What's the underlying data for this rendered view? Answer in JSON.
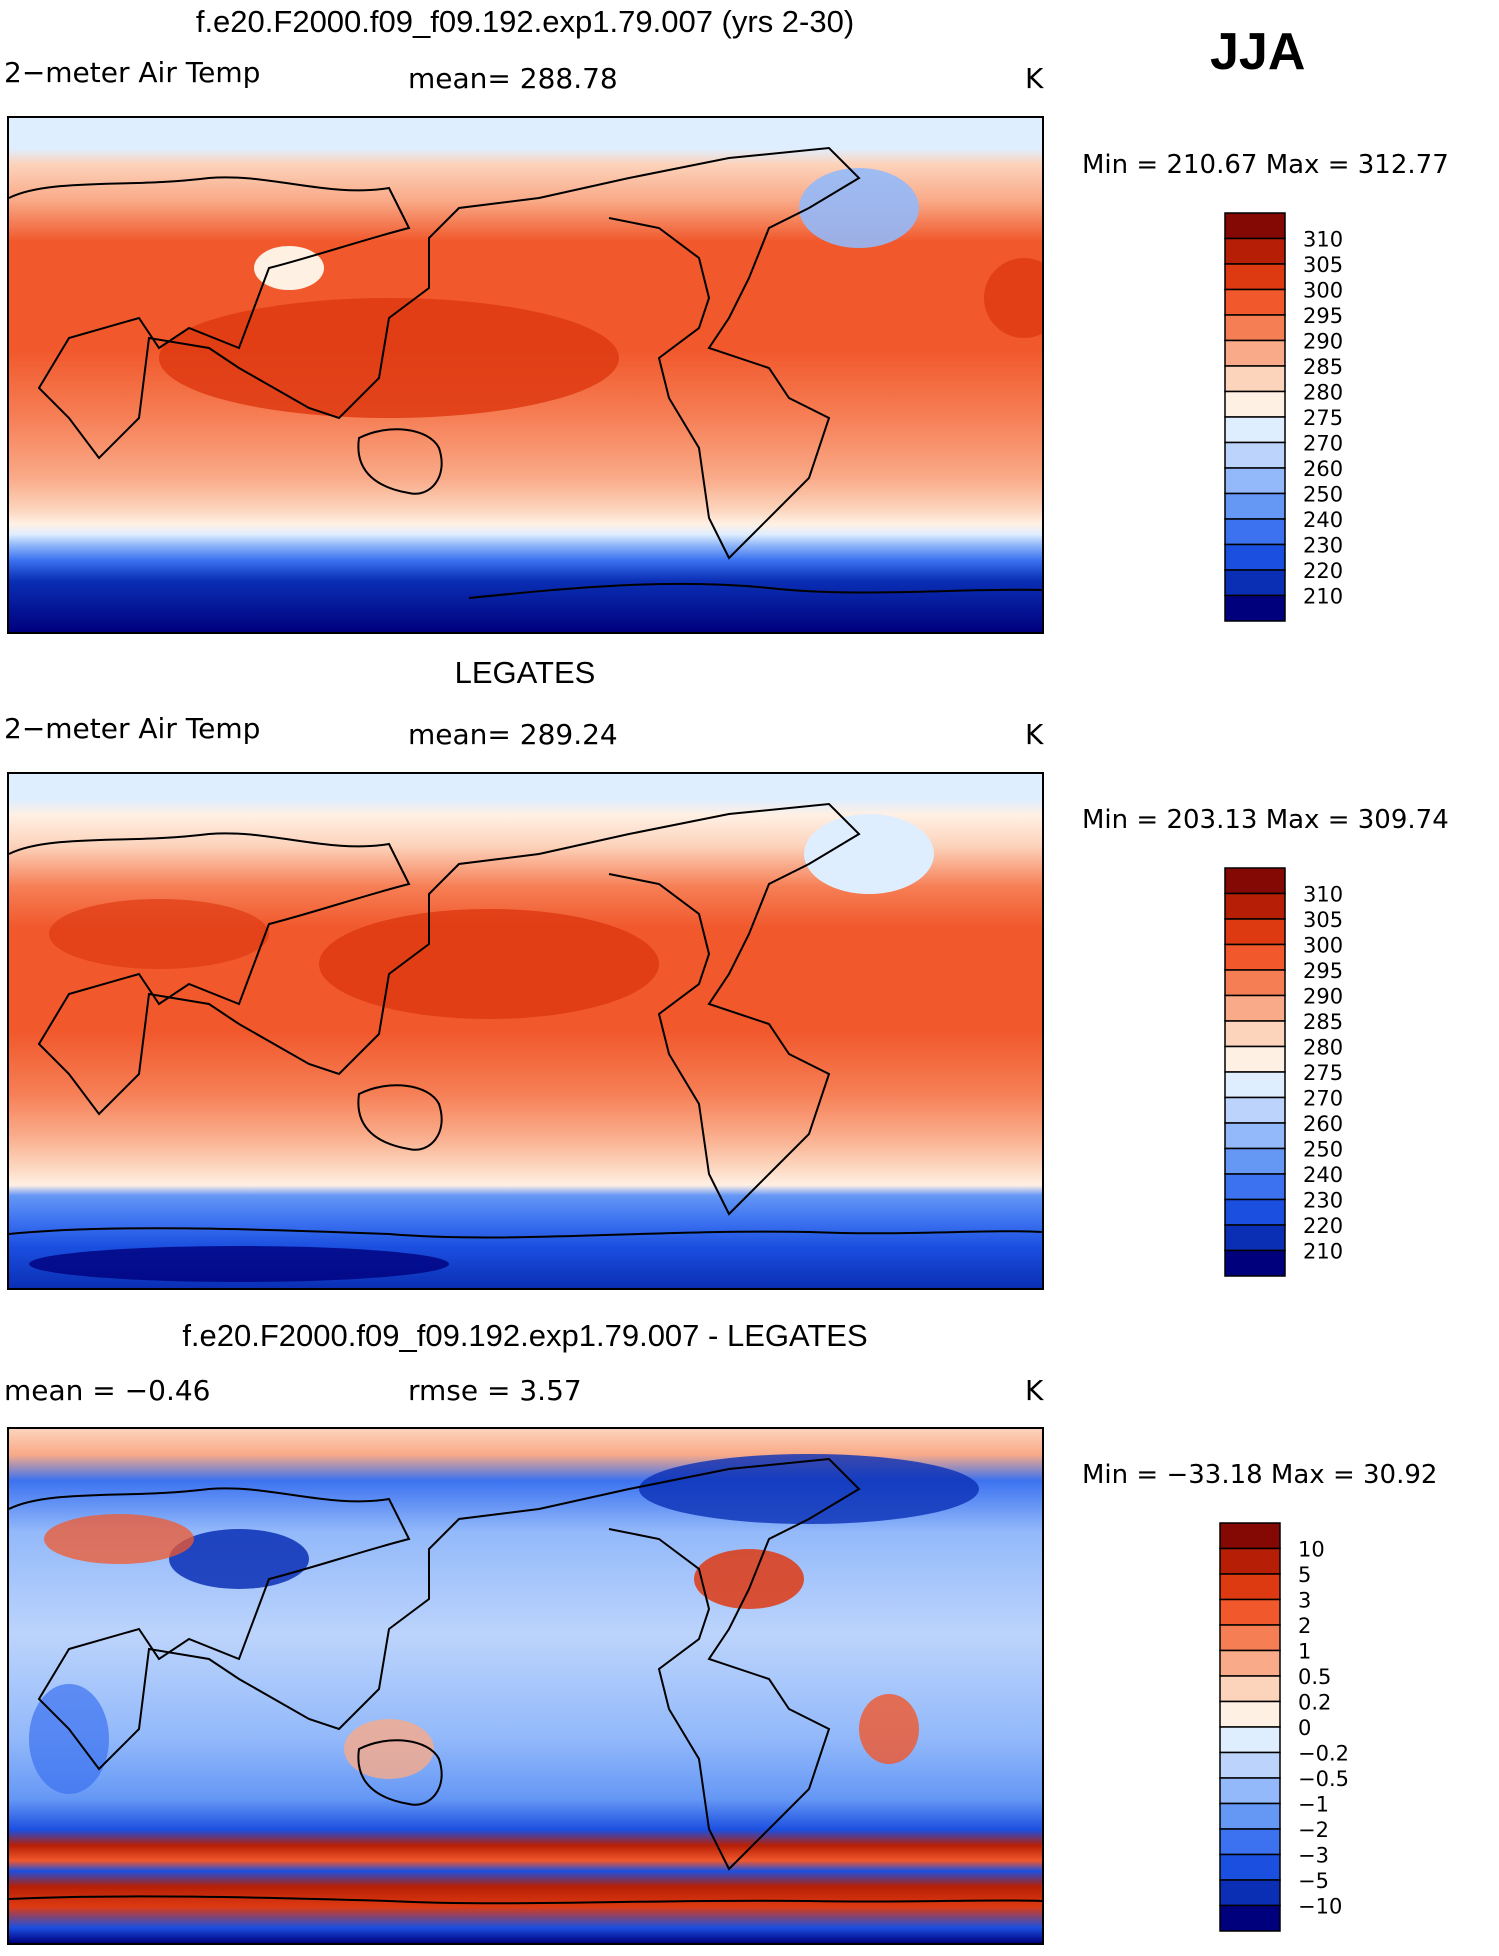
{
  "season": "JJA",
  "colors": {
    "abs_scale": [
      "#00007d",
      "#0a2fb5",
      "#1b4fe0",
      "#3c72f0",
      "#6597f5",
      "#93b9fa",
      "#bcd4fc",
      "#dfeefe",
      "#fff0e4",
      "#fcd3bb",
      "#f9aa88",
      "#f67e55",
      "#f1582c",
      "#de3a12",
      "#b61f05",
      "#840804"
    ],
    "diff_scale": [
      "#00007d",
      "#0a2fb5",
      "#1b4fe0",
      "#3c72f0",
      "#6597f5",
      "#93b9fa",
      "#bcd4fc",
      "#dfeefe",
      "#fff0e4",
      "#fcd3bb",
      "#f9aa88",
      "#f67e55",
      "#f1582c",
      "#de3a12",
      "#b61f05",
      "#840804"
    ]
  },
  "panels": [
    {
      "title": "f.e20.F2000.f09_f09.192.exp1.79.007 (yrs 2-30)",
      "left_label": "2−meter Air Temp",
      "mid_label": "mean=  288.78",
      "units": "K",
      "minmax": "Min  =  210.67  Max  =  312.77",
      "colorbar_labels": [
        "310",
        "305",
        "300",
        "295",
        "290",
        "285",
        "280",
        "275",
        "270",
        "260",
        "250",
        "240",
        "230",
        "220",
        "210"
      ]
    },
    {
      "title": "LEGATES",
      "left_label": "2−meter Air Temp",
      "mid_label": "mean=  289.24",
      "units": "K",
      "minmax": "Min  =  203.13  Max  =  309.74",
      "colorbar_labels": [
        "310",
        "305",
        "300",
        "295",
        "290",
        "285",
        "280",
        "275",
        "270",
        "260",
        "250",
        "240",
        "230",
        "220",
        "210"
      ]
    },
    {
      "title": "f.e20.F2000.f09_f09.192.exp1.79.007 - LEGATES",
      "left_label": "mean  =    −0.46",
      "mid_label": "rmse  =     3.57",
      "units": "K",
      "minmax": "Min  =  −33.18  Max  =    30.92",
      "colorbar_labels": [
        "10",
        "5",
        "3",
        "2",
        "1",
        "0.5",
        "0.2",
        "0",
        "−0.2",
        "−0.5",
        "−1",
        "−2",
        "−3",
        "−5",
        "−10"
      ]
    }
  ]
}
